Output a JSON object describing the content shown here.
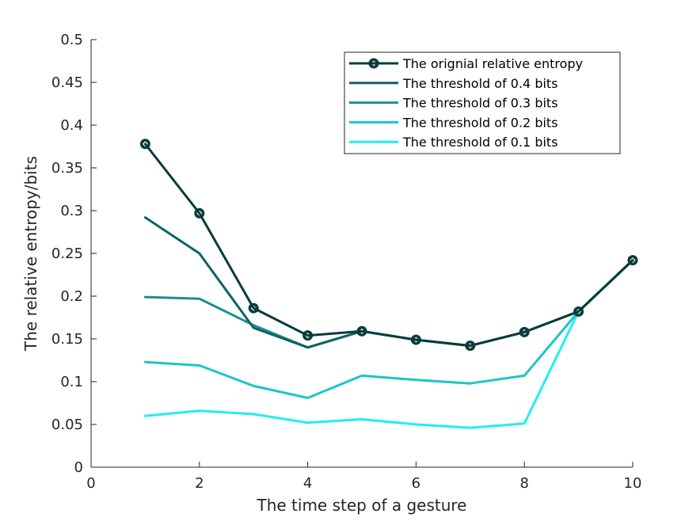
{
  "chart_data": {
    "type": "line",
    "xlabel": "The time step of a gesture",
    "ylabel": "The relative entropy/bits",
    "xlim": [
      0,
      10
    ],
    "ylim": [
      0,
      0.5
    ],
    "xticks": [
      "0",
      "2",
      "4",
      "6",
      "8",
      "10"
    ],
    "yticks": [
      "0",
      "0.05",
      "0.1",
      "0.15",
      "0.2",
      "0.25",
      "0.3",
      "0.35",
      "0.4",
      "0.45",
      "0.5"
    ],
    "legend_position": "top-right",
    "grid": false,
    "series": [
      {
        "name": "The orignial relative entropy",
        "color": "#0b3b3b",
        "marker": "diamond-circle",
        "x": [
          1,
          2,
          3,
          4,
          5,
          6,
          7,
          8,
          9,
          10
        ],
        "y": [
          0.378,
          0.297,
          0.186,
          0.154,
          0.159,
          0.149,
          0.142,
          0.158,
          0.182,
          0.242
        ]
      },
      {
        "name": "The threshold of 0.4 bits",
        "color": "#0f6363",
        "marker": "none",
        "x": [
          1,
          2,
          3,
          4,
          5,
          6,
          7,
          8,
          9,
          10
        ],
        "y": [
          0.292,
          0.25,
          0.163,
          0.14,
          0.159,
          0.149,
          0.142,
          0.158,
          0.182,
          0.242
        ]
      },
      {
        "name": "The threshold of 0.3 bits",
        "color": "#1a9090",
        "marker": "none",
        "x": [
          1,
          2,
          3,
          4,
          5,
          6,
          7,
          8,
          9,
          10
        ],
        "y": [
          0.199,
          0.197,
          0.166,
          0.14,
          0.159,
          0.149,
          0.142,
          0.158,
          0.182,
          0.242
        ]
      },
      {
        "name": "The threshold of 0.2 bits",
        "color": "#1fc4c4",
        "marker": "none",
        "x": [
          1,
          2,
          3,
          4,
          5,
          6,
          7,
          8,
          9,
          10
        ],
        "y": [
          0.123,
          0.119,
          0.095,
          0.081,
          0.107,
          0.102,
          0.098,
          0.107,
          0.182,
          0.242
        ]
      },
      {
        "name": "The threshold of 0.1 bits",
        "color": "#22eeee",
        "marker": "none",
        "x": [
          1,
          2,
          3,
          4,
          5,
          6,
          7,
          8,
          9,
          10
        ],
        "y": [
          0.06,
          0.066,
          0.062,
          0.052,
          0.056,
          0.05,
          0.046,
          0.051,
          0.182,
          0.242
        ]
      }
    ]
  }
}
